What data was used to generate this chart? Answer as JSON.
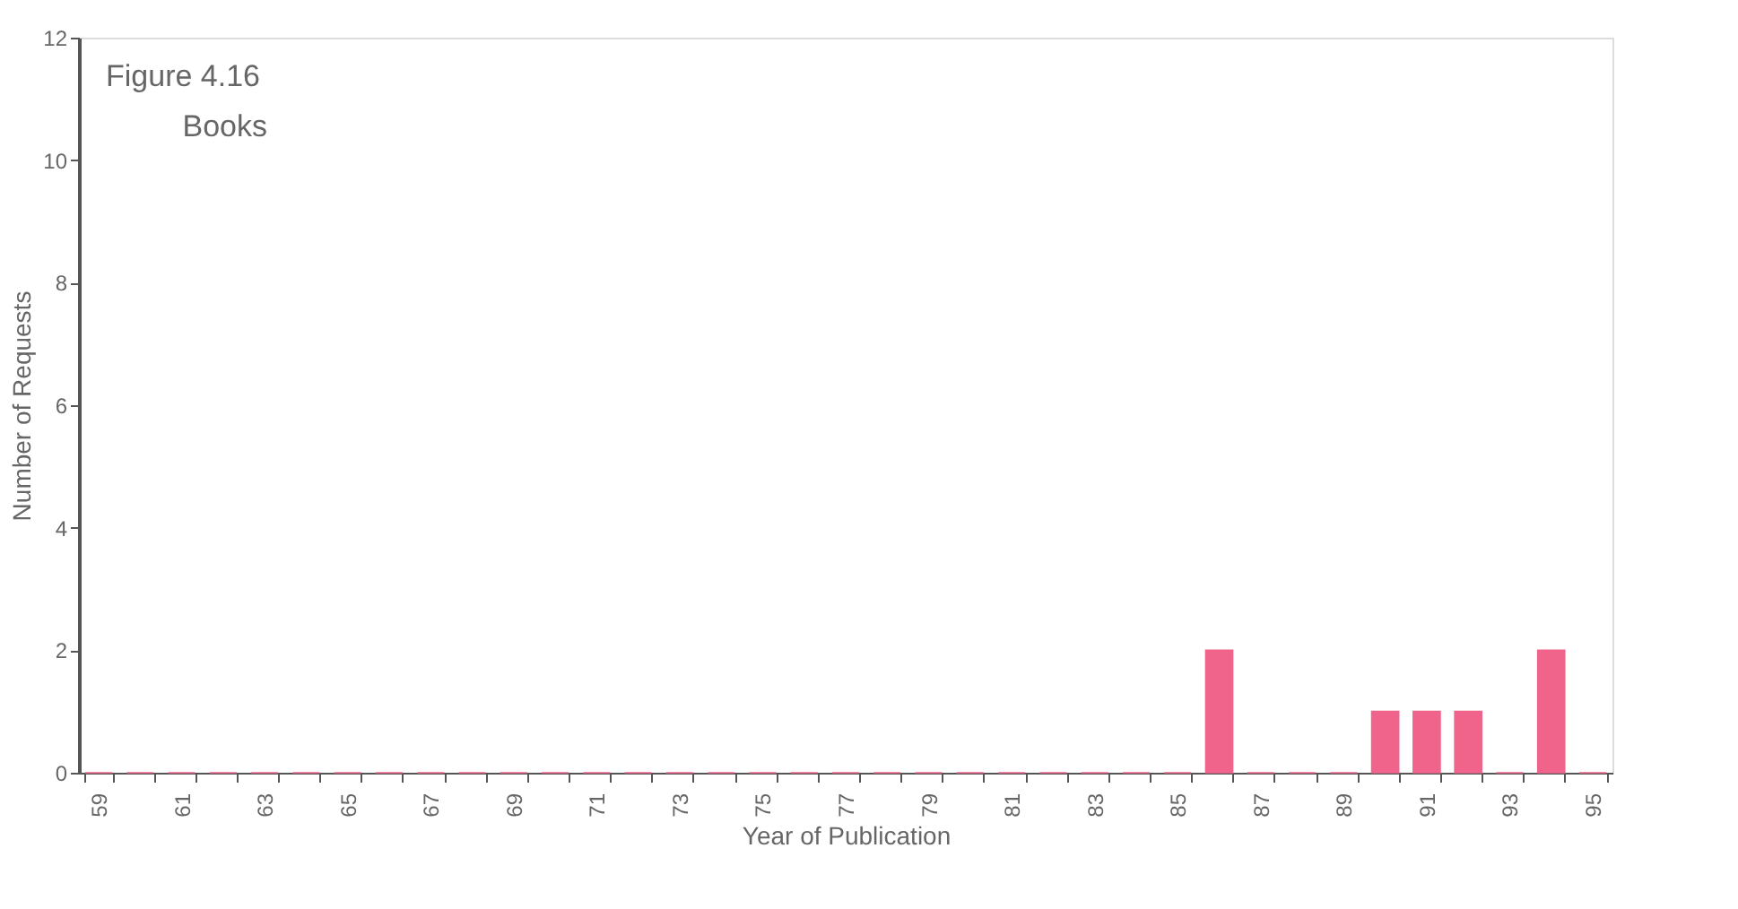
{
  "chart_data": {
    "type": "bar",
    "title": "Figure 4.16",
    "subtitle": "Books",
    "xlabel": "Year of Publication",
    "ylabel": "Number of Requests",
    "categories": [
      "59",
      null,
      "61",
      null,
      "63",
      null,
      "65",
      null,
      "67",
      null,
      "69",
      null,
      "71",
      null,
      "73",
      null,
      "75",
      null,
      "77",
      null,
      "79",
      null,
      "81",
      null,
      "83",
      null,
      "85",
      null,
      "87",
      null,
      "89",
      null,
      "91",
      null,
      "93",
      null,
      "95"
    ],
    "values": [
      0,
      0,
      0,
      0,
      0,
      0,
      0,
      0,
      0,
      0,
      0,
      0,
      0,
      0,
      0,
      0,
      0,
      0,
      0,
      0,
      0,
      0,
      0,
      0,
      0,
      0,
      0,
      2,
      0,
      0,
      0,
      1,
      1,
      1,
      0,
      2,
      0
    ],
    "color": "#f0648c",
    "ylim": [
      0,
      12
    ],
    "yticks": [
      0,
      2,
      4,
      6,
      8,
      10,
      12
    ],
    "grid": false
  }
}
